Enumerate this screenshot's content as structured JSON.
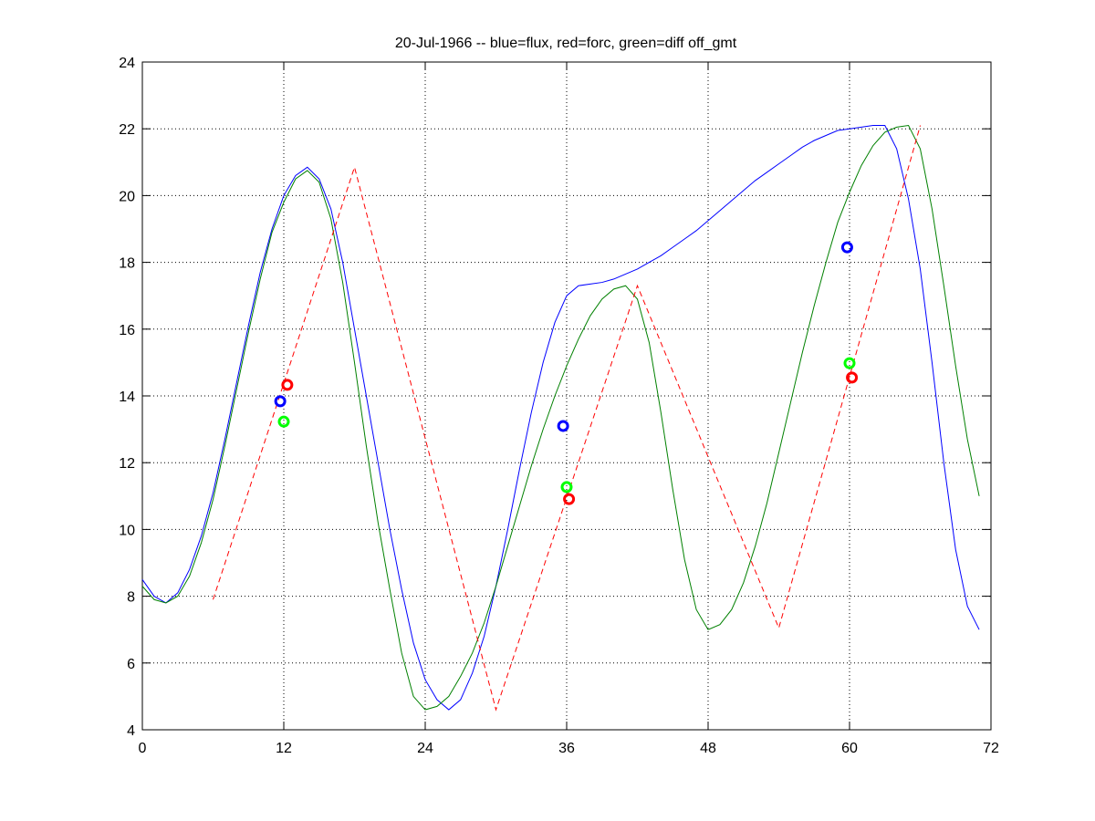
{
  "chart_data": {
    "type": "line",
    "title": "20-Jul-1966 -- blue=flux, red=forc, green=diff off_gmt",
    "xlim": [
      0,
      72
    ],
    "ylim": [
      4,
      24
    ],
    "xticks": [
      0,
      12,
      24,
      36,
      48,
      60,
      72
    ],
    "yticks": [
      4,
      6,
      8,
      10,
      12,
      14,
      16,
      18,
      20,
      22,
      24
    ],
    "grid": true,
    "series": [
      {
        "color": "#0000ff",
        "style": "solid",
        "x": [
          0,
          1,
          2,
          3,
          4,
          5,
          6,
          7,
          8,
          9,
          10,
          11,
          12,
          13,
          14,
          15,
          16,
          17,
          18,
          19,
          20,
          21,
          22,
          23,
          24,
          25,
          26,
          27,
          28,
          29,
          30,
          31,
          32,
          33,
          34,
          35,
          36,
          37,
          38,
          39,
          40,
          41,
          42,
          43,
          44,
          45,
          46,
          47,
          48,
          49,
          50,
          51,
          52,
          53,
          54,
          55,
          56,
          57,
          58,
          59,
          60,
          61,
          62,
          63,
          64,
          65,
          66,
          67,
          68,
          69,
          70,
          71
        ],
        "values": [
          8.5,
          8.0,
          7.8,
          8.1,
          8.8,
          9.8,
          11.1,
          12.7,
          14.4,
          16.1,
          17.7,
          19.0,
          20.0,
          20.6,
          20.85,
          20.5,
          19.6,
          18.0,
          16.0,
          14.0,
          12.0,
          10.0,
          8.2,
          6.6,
          5.5,
          4.9,
          4.6,
          4.9,
          5.7,
          6.8,
          8.3,
          10.0,
          11.8,
          13.5,
          15.0,
          16.2,
          17.0,
          17.3,
          17.35,
          17.4,
          17.5,
          17.65,
          17.8,
          18.0,
          18.2,
          18.45,
          18.7,
          18.95,
          19.25,
          19.55,
          19.85,
          20.15,
          20.45,
          20.7,
          20.95,
          21.2,
          21.45,
          21.65,
          21.8,
          21.95,
          22.0,
          22.05,
          22.1,
          22.1,
          21.4,
          19.9,
          17.8,
          15.0,
          12.0,
          9.4,
          7.7,
          7.0
        ]
      },
      {
        "color": "#008000",
        "style": "solid",
        "x": [
          0,
          1,
          2,
          3,
          4,
          5,
          6,
          7,
          8,
          9,
          10,
          11,
          12,
          13,
          14,
          15,
          16,
          17,
          18,
          19,
          20,
          21,
          22,
          23,
          24,
          25,
          26,
          27,
          28,
          29,
          30,
          31,
          32,
          33,
          34,
          35,
          36,
          37,
          38,
          39,
          40,
          41,
          42,
          43,
          44,
          45,
          46,
          47,
          48,
          49,
          50,
          51,
          52,
          53,
          54,
          55,
          56,
          57,
          58,
          59,
          60,
          61,
          62,
          63,
          64,
          65,
          66,
          67,
          68,
          69,
          70,
          71
        ],
        "values": [
          8.3,
          7.9,
          7.8,
          8.0,
          8.6,
          9.6,
          10.9,
          12.5,
          14.2,
          15.9,
          17.5,
          18.9,
          19.8,
          20.5,
          20.75,
          20.4,
          19.3,
          17.4,
          15.0,
          12.5,
          10.2,
          8.2,
          6.3,
          5.0,
          4.6,
          4.7,
          5.0,
          5.6,
          6.3,
          7.2,
          8.3,
          9.5,
          10.7,
          11.9,
          13.0,
          14.0,
          14.9,
          15.7,
          16.4,
          16.9,
          17.2,
          17.3,
          16.9,
          15.6,
          13.5,
          11.2,
          9.1,
          7.6,
          7.0,
          7.15,
          7.6,
          8.4,
          9.5,
          10.8,
          12.3,
          13.8,
          15.3,
          16.7,
          18.0,
          19.2,
          20.1,
          20.9,
          21.5,
          21.9,
          22.05,
          22.1,
          21.4,
          19.6,
          17.3,
          14.9,
          12.7,
          11.0
        ]
      },
      {
        "color": "#ff0000",
        "style": "dashed",
        "x": [
          6,
          18,
          30,
          42,
          54,
          66
        ],
        "values": [
          7.9,
          20.85,
          4.6,
          17.3,
          7.05,
          22.1
        ]
      },
      {
        "color": "#0000ff",
        "style": "marker",
        "x": [
          11.7,
          35.7,
          59.8
        ],
        "values": [
          13.84,
          13.1,
          18.45
        ]
      },
      {
        "color": "#00ff00",
        "style": "marker",
        "x": [
          12.0,
          36.0,
          60.0
        ],
        "values": [
          13.23,
          11.27,
          14.98
        ]
      },
      {
        "color": "#ff0000",
        "style": "marker",
        "x": [
          12.3,
          36.2,
          60.2
        ],
        "values": [
          14.33,
          10.91,
          14.55
        ]
      }
    ]
  }
}
